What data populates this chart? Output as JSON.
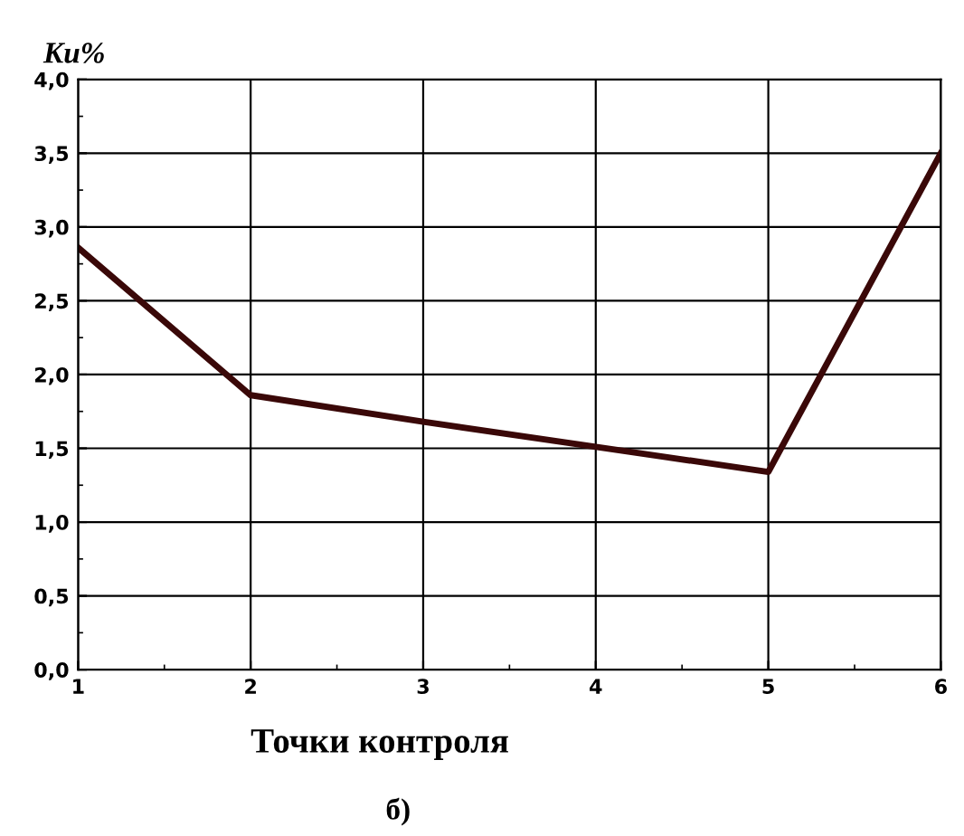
{
  "chart_data": {
    "type": "line",
    "ylabel": "Ku%",
    "xlabel": "Точки контроля",
    "annotations": [
      "б)"
    ],
    "x": [
      1,
      2,
      3,
      4,
      5,
      6
    ],
    "series": [
      {
        "color": "#3a0808",
        "values": [
          2.86,
          1.86,
          1.68,
          1.51,
          1.34,
          3.5
        ]
      }
    ],
    "xlim": [
      1,
      6
    ],
    "xticks": [
      1,
      2,
      3,
      4,
      5,
      6
    ],
    "ylim": [
      0,
      4
    ],
    "yticks": [
      {
        "value": 0,
        "label": "0,0"
      },
      {
        "value": 0.5,
        "label": "0,5"
      },
      {
        "value": 1,
        "label": "1,0"
      },
      {
        "value": 1.5,
        "label": "1,5"
      },
      {
        "value": 2,
        "label": "2,0"
      },
      {
        "value": 2.5,
        "label": "2,5"
      },
      {
        "value": 3,
        "label": "3,0"
      },
      {
        "value": 3.5,
        "label": "3,5"
      },
      {
        "value": 4,
        "label": "4,0"
      }
    ],
    "grid": true,
    "marker": "none",
    "line_style": "solid"
  }
}
